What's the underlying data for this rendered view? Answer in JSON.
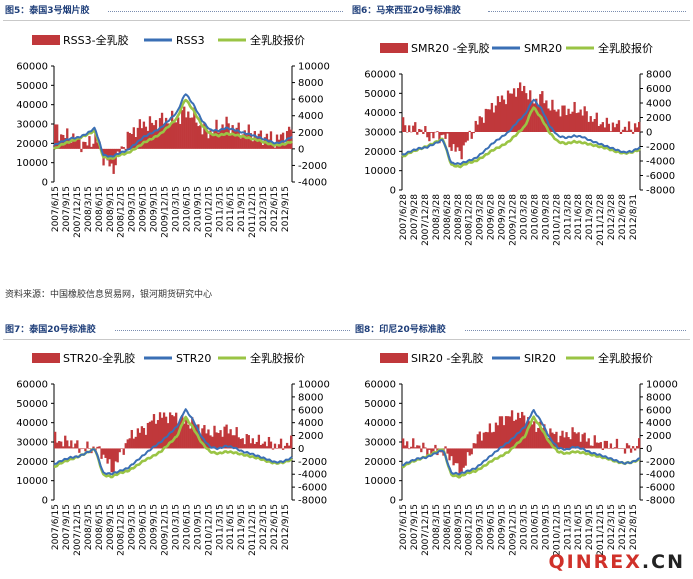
{
  "captions": {
    "fig5": "图5：泰国3号烟片胶",
    "fig6": "图6：马来西亚20号标准胶",
    "fig7": "图7：泰国20号标准胶",
    "fig8": "图8：印尼20号标准胶"
  },
  "source_note": "资料来源：中国橡胶信息贸易网，银河期货研究中心",
  "watermark": {
    "main": "QINREX",
    "suffix": ".CN"
  },
  "colors": {
    "bar": "#c0383b",
    "line_blue": "#3a6fb5",
    "line_green": "#9ac444"
  },
  "chart_data": [
    {
      "id": "fig5",
      "type": "bar+line",
      "legend": [
        "RSS3-全乳胶",
        "RSS3",
        "全乳胶报价"
      ],
      "y_left": {
        "range": [
          0,
          60000
        ],
        "ticks": [
          "0",
          "10000",
          "20000",
          "30000",
          "40000",
          "50000",
          "60000"
        ]
      },
      "y_right": {
        "range": [
          -4000,
          10000
        ],
        "ticks": [
          "-4000",
          "-2000",
          "0",
          "2000",
          "4000",
          "6000",
          "8000",
          "10000"
        ]
      },
      "x_ticks": [
        "2007/6/15",
        "2007/9/15",
        "2007/12/15",
        "2008/3/15",
        "2008/6/15",
        "2008/9/15",
        "2008/12/15",
        "2009/3/15",
        "2009/6/15",
        "2009/9/15",
        "2009/12/15",
        "2010/3/15",
        "2010/6/15",
        "2010/9/15",
        "2010/12/15",
        "2011/3/15",
        "2011/6/15",
        "2011/9/15",
        "2011/12/15",
        "2012/3/15",
        "2012/6/15",
        "2012/9/15"
      ],
      "series": [
        {
          "name": "RSS3",
          "axis": "left",
          "values": [
            19000,
            21000,
            22500,
            23000,
            25000,
            28000,
            14000,
            13000,
            15000,
            16500,
            20000,
            23500,
            25500,
            28000,
            32000,
            36000,
            46000,
            40000,
            32000,
            27000,
            26500,
            28000,
            27000,
            25500,
            24500,
            23000,
            21500,
            20000,
            21000,
            23500
          ]
        },
        {
          "name": "全乳胶报价",
          "axis": "left",
          "values": [
            17000,
            19500,
            21000,
            22500,
            24500,
            26500,
            13000,
            12000,
            14000,
            15000,
            17500,
            20500,
            22500,
            25000,
            29000,
            33000,
            43000,
            37000,
            29500,
            25000,
            24000,
            25000,
            24500,
            23500,
            22500,
            21500,
            20000,
            19000,
            19500,
            21000
          ]
        },
        {
          "name": "RSS3-全乳胶",
          "axis": "right",
          "values": [
            2500,
            1500,
            1500,
            800,
            500,
            1500,
            -1000,
            -2500,
            -500,
            1500,
            2500,
            3000,
            3000,
            3500,
            3500,
            3500,
            4500,
            4000,
            2500,
            2000,
            2500,
            3000,
            2500,
            2000,
            2000,
            1500,
            1500,
            1000,
            1500,
            2500
          ]
        }
      ]
    },
    {
      "id": "fig6",
      "type": "bar+line",
      "legend": [
        "SMR20 -全乳胶",
        "SMR20",
        "全乳胶报价"
      ],
      "y_left": {
        "range": [
          0,
          60000
        ],
        "ticks": [
          "0",
          "10000",
          "20000",
          "30000",
          "40000",
          "50000",
          "60000"
        ]
      },
      "y_right": {
        "range": [
          -8000,
          8000
        ],
        "ticks": [
          "-8000",
          "-6000",
          "-4000",
          "-2000",
          "0",
          "2000",
          "4000",
          "6000",
          "8000"
        ]
      },
      "x_ticks": [
        "2007/6/28",
        "2007/9/28",
        "2007/12/28",
        "2008/3/28",
        "2008/6/28",
        "2008/9/28",
        "2008/12/28",
        "2009/3/28",
        "2009/6/28",
        "2009/9/28",
        "2009/12/28",
        "2010/3/28",
        "2010/6/28",
        "2010/9/28",
        "2010/12/28",
        "2011/3/28",
        "2011/6/28",
        "2011/9/28",
        "2011/12/28",
        "2012/3/28",
        "2012/6/28",
        "2012/8/31"
      ],
      "series": [
        {
          "name": "SMR20",
          "axis": "left",
          "values": [
            18000,
            20000,
            21500,
            22000,
            24000,
            26000,
            14000,
            13500,
            15000,
            16500,
            20000,
            24000,
            27000,
            30000,
            35000,
            39000,
            47000,
            42000,
            33000,
            28000,
            27000,
            28000,
            27500,
            25500,
            24000,
            22500,
            21000,
            19500,
            20000,
            22000
          ]
        },
        {
          "name": "全乳胶报价",
          "axis": "left",
          "values": [
            17000,
            19500,
            21000,
            22500,
            24500,
            26500,
            13000,
            12000,
            14000,
            15000,
            17500,
            20500,
            22500,
            25000,
            29000,
            33000,
            43000,
            37000,
            29500,
            25000,
            24000,
            25000,
            24500,
            23500,
            22500,
            21500,
            20000,
            19000,
            19500,
            21000
          ]
        },
        {
          "name": "SMR20 -全乳胶",
          "axis": "right",
          "values": [
            1000,
            500,
            500,
            -500,
            -500,
            -500,
            -2000,
            -3000,
            -1000,
            1000,
            2500,
            3500,
            4500,
            5000,
            6000,
            6000,
            4000,
            5000,
            3500,
            3000,
            3000,
            3000,
            3000,
            2000,
            1500,
            1000,
            1000,
            500,
            500,
            1000
          ]
        }
      ]
    },
    {
      "id": "fig7",
      "type": "bar+line",
      "legend": [
        "STR20-全乳胶",
        "STR20",
        "全乳胶报价"
      ],
      "y_left": {
        "range": [
          0,
          60000
        ],
        "ticks": [
          "0",
          "10000",
          "20000",
          "30000",
          "40000",
          "50000",
          "60000"
        ]
      },
      "y_right": {
        "range": [
          -8000,
          10000
        ],
        "ticks": [
          "-8000",
          "-6000",
          "-4000",
          "-2000",
          "0",
          "2000",
          "4000",
          "6000",
          "8000",
          "10000"
        ]
      },
      "x_ticks": [
        "2007/6/15",
        "2007/9/15",
        "2007/12/15",
        "2008/3/15",
        "2008/6/15",
        "2008/9/15",
        "2008/12/15",
        "2009/3/15",
        "2009/6/15",
        "2009/9/15",
        "2009/12/15",
        "2010/3/15",
        "2010/6/15",
        "2010/9/15",
        "2010/12/15",
        "2011/3/15",
        "2011/6/15",
        "2011/9/15",
        "2011/12/15",
        "2012/3/15",
        "2012/6/15",
        "2012/9/15"
      ],
      "series": [
        {
          "name": "STR20",
          "axis": "left",
          "values": [
            18500,
            20500,
            22000,
            22500,
            24500,
            26500,
            14000,
            13500,
            15000,
            16500,
            20000,
            23500,
            27000,
            30000,
            34000,
            38000,
            47000,
            41000,
            32500,
            27500,
            26500,
            28000,
            27000,
            25000,
            24000,
            22500,
            21000,
            19500,
            20000,
            22000
          ]
        },
        {
          "name": "全乳胶报价",
          "axis": "left",
          "values": [
            17000,
            19500,
            21000,
            22500,
            24500,
            26500,
            13000,
            12000,
            14000,
            15000,
            17500,
            20500,
            22500,
            25000,
            29000,
            33000,
            43000,
            37000,
            29500,
            25000,
            24000,
            25000,
            24500,
            23500,
            22500,
            21500,
            20000,
            19000,
            19500,
            21000
          ]
        },
        {
          "name": "STR20-全乳胶",
          "axis": "right",
          "values": [
            1500,
            1000,
            1000,
            0,
            0,
            0,
            -1000,
            -3500,
            -1000,
            1500,
            2500,
            3000,
            4500,
            5000,
            5000,
            5000,
            4000,
            4000,
            3000,
            2500,
            2500,
            3000,
            2500,
            1500,
            1500,
            1000,
            1000,
            500,
            500,
            1000
          ]
        }
      ]
    },
    {
      "id": "fig8",
      "type": "bar+line",
      "legend": [
        "SIR20 -全乳胶",
        "SIR20",
        "全乳胶报价"
      ],
      "y_left": {
        "range": [
          0,
          60000
        ],
        "ticks": [
          "0",
          "10000",
          "20000",
          "30000",
          "40000",
          "50000",
          "60000"
        ]
      },
      "y_right": {
        "range": [
          -8000,
          10000
        ],
        "ticks": [
          "-8000",
          "-6000",
          "-4000",
          "-2000",
          "0",
          "2000",
          "4000",
          "6000",
          "8000",
          "10000"
        ]
      },
      "x_ticks": [
        "2007/6/15",
        "2007/9/15",
        "2007/12/15",
        "2008/3/15",
        "2008/6/15",
        "2008/9/15",
        "2008/12/15",
        "2009/3/15",
        "2009/6/15",
        "2009/9/15",
        "2009/12/15",
        "2010/3/15",
        "2010/6/15",
        "2010/9/15",
        "2010/12/15",
        "2011/3/15",
        "2011/6/15",
        "2011/9/15",
        "2011/12/15",
        "2012/3/15",
        "2012/6/15",
        "2012/8/15"
      ],
      "series": [
        {
          "name": "SIR20",
          "axis": "left",
          "values": [
            18000,
            20000,
            21500,
            22000,
            24000,
            26000,
            14000,
            13500,
            15000,
            16500,
            20000,
            23500,
            27000,
            30000,
            34000,
            38000,
            46500,
            40500,
            32000,
            27000,
            26000,
            27500,
            26500,
            24500,
            23500,
            22000,
            20500,
            19000,
            19500,
            21500
          ]
        },
        {
          "name": "全乳胶报价",
          "axis": "left",
          "values": [
            17000,
            19500,
            21000,
            22500,
            24500,
            26500,
            13000,
            12000,
            14000,
            15000,
            17500,
            20500,
            22500,
            25000,
            29000,
            33000,
            43000,
            37000,
            29500,
            25000,
            24000,
            25000,
            24500,
            23500,
            22500,
            21500,
            20000,
            19000,
            19500,
            21000
          ]
        },
        {
          "name": "SIR20 -全乳胶",
          "axis": "right",
          "values": [
            1000,
            500,
            500,
            -500,
            -500,
            -500,
            -1500,
            -4000,
            -1500,
            1500,
            2500,
            3000,
            4500,
            5000,
            5000,
            5000,
            3500,
            3500,
            2500,
            2000,
            2000,
            2500,
            2000,
            1000,
            1000,
            500,
            500,
            0,
            0,
            500
          ]
        }
      ]
    }
  ]
}
